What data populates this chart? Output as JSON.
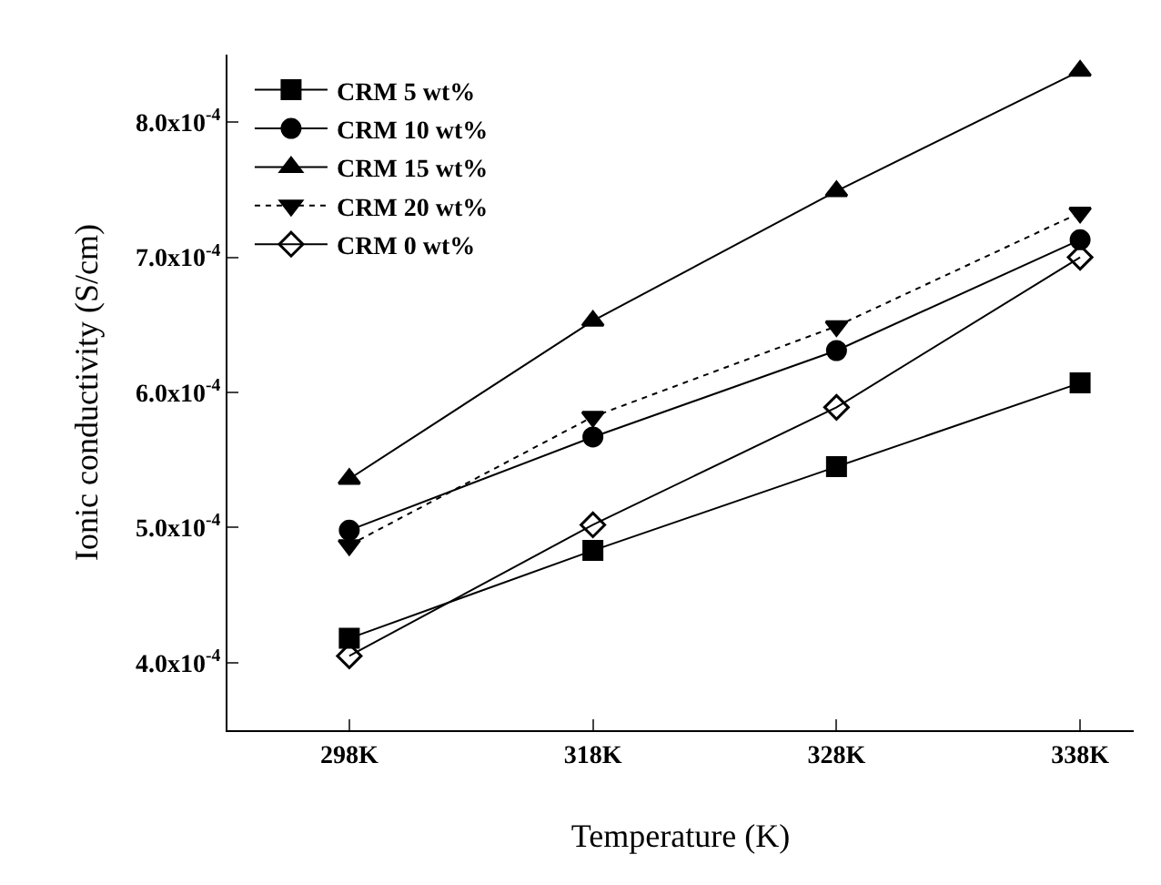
{
  "chart_data": {
    "type": "line",
    "xlabel": "Temperature (K)",
    "ylabel": "Ionic conductivity (S/cm)",
    "categories": [
      "298K",
      "318K",
      "328K",
      "338K"
    ],
    "series": [
      {
        "name": "CRM 5 wt%",
        "color": "#000000",
        "marker": "square",
        "line_style": "solid",
        "values": [
          0.000418,
          0.000483,
          0.000545,
          0.000607
        ]
      },
      {
        "name": "CRM 10 wt%",
        "color": "#000000",
        "marker": "circle",
        "line_style": "solid",
        "values": [
          0.000498,
          0.000567,
          0.000631,
          0.000713
        ]
      },
      {
        "name": "CRM 15 wt%",
        "color": "#000000",
        "marker": "triangle",
        "line_style": "solid",
        "values": [
          0.000536,
          0.000653,
          0.000749,
          0.000838
        ]
      },
      {
        "name": "CRM 20 wt%",
        "color": "#000000",
        "marker": "triangle-down",
        "line_style": "dotted",
        "values": [
          0.000487,
          0.000582,
          0.000649,
          0.000733
        ]
      },
      {
        "name": "CRM 0 wt%",
        "color": "#000000",
        "marker": "diamond-open",
        "line_style": "solid",
        "values": [
          0.000405,
          0.000502,
          0.000589,
          0.0007
        ]
      }
    ],
    "ylim": [
      0.00035,
      0.00085
    ],
    "yticks": [
      {
        "value": 0.0004,
        "label": "4.0x10$^{-4}$"
      },
      {
        "value": 0.0005,
        "label": "5.0x10$^{-4}$"
      },
      {
        "value": 0.0006,
        "label": "6.0x10$^{-4}$"
      },
      {
        "value": 0.0007,
        "label": "7.0x10$^{-4}$"
      },
      {
        "value": 0.0008,
        "label": "8.0x10$^{-4}$"
      }
    ],
    "legend": "top left"
  }
}
